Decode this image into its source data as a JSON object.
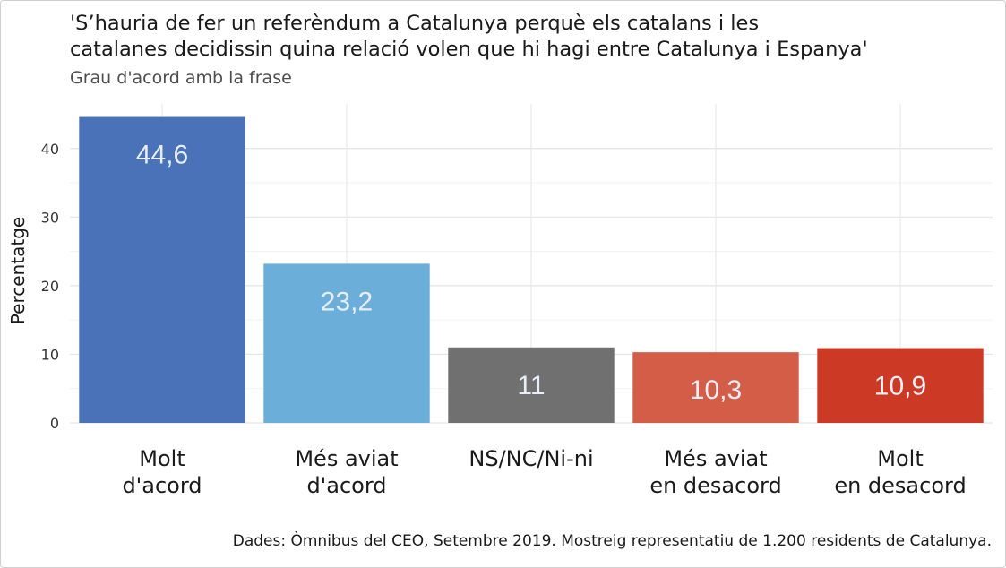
{
  "chart_data": {
    "type": "bar",
    "title": "'S’hauria de fer un referèndum a Catalunya perquè els catalans i les\ncatalanes decidissin quina relació volen que hi hagi entre Catalunya i Espanya'",
    "subtitle": "Grau d'acord amb la frase",
    "xlabel": "",
    "ylabel": "Percentatge",
    "ylim": [
      0,
      46.5
    ],
    "yticks": [
      0,
      10,
      20,
      30,
      40
    ],
    "grid": true,
    "categories": [
      [
        "Molt",
        "d'acord"
      ],
      [
        "Més aviat",
        "d'acord"
      ],
      [
        "NS/NC/Ni-ni"
      ],
      [
        "Més aviat",
        "en desacord"
      ],
      [
        "Molt",
        "en desacord"
      ]
    ],
    "values": [
      44.6,
      23.2,
      11,
      10.3,
      10.9
    ],
    "value_labels": [
      "44,6",
      "23,2",
      "11",
      "10,3",
      "10,9"
    ],
    "colors": [
      "#4a72b8",
      "#6aaed9",
      "#707070",
      "#d35d47",
      "#cc3a26"
    ],
    "caption": "Dades: Òmnibus del CEO, Setembre 2019. Mostreig representatiu de 1.200 residents de Catalunya."
  }
}
